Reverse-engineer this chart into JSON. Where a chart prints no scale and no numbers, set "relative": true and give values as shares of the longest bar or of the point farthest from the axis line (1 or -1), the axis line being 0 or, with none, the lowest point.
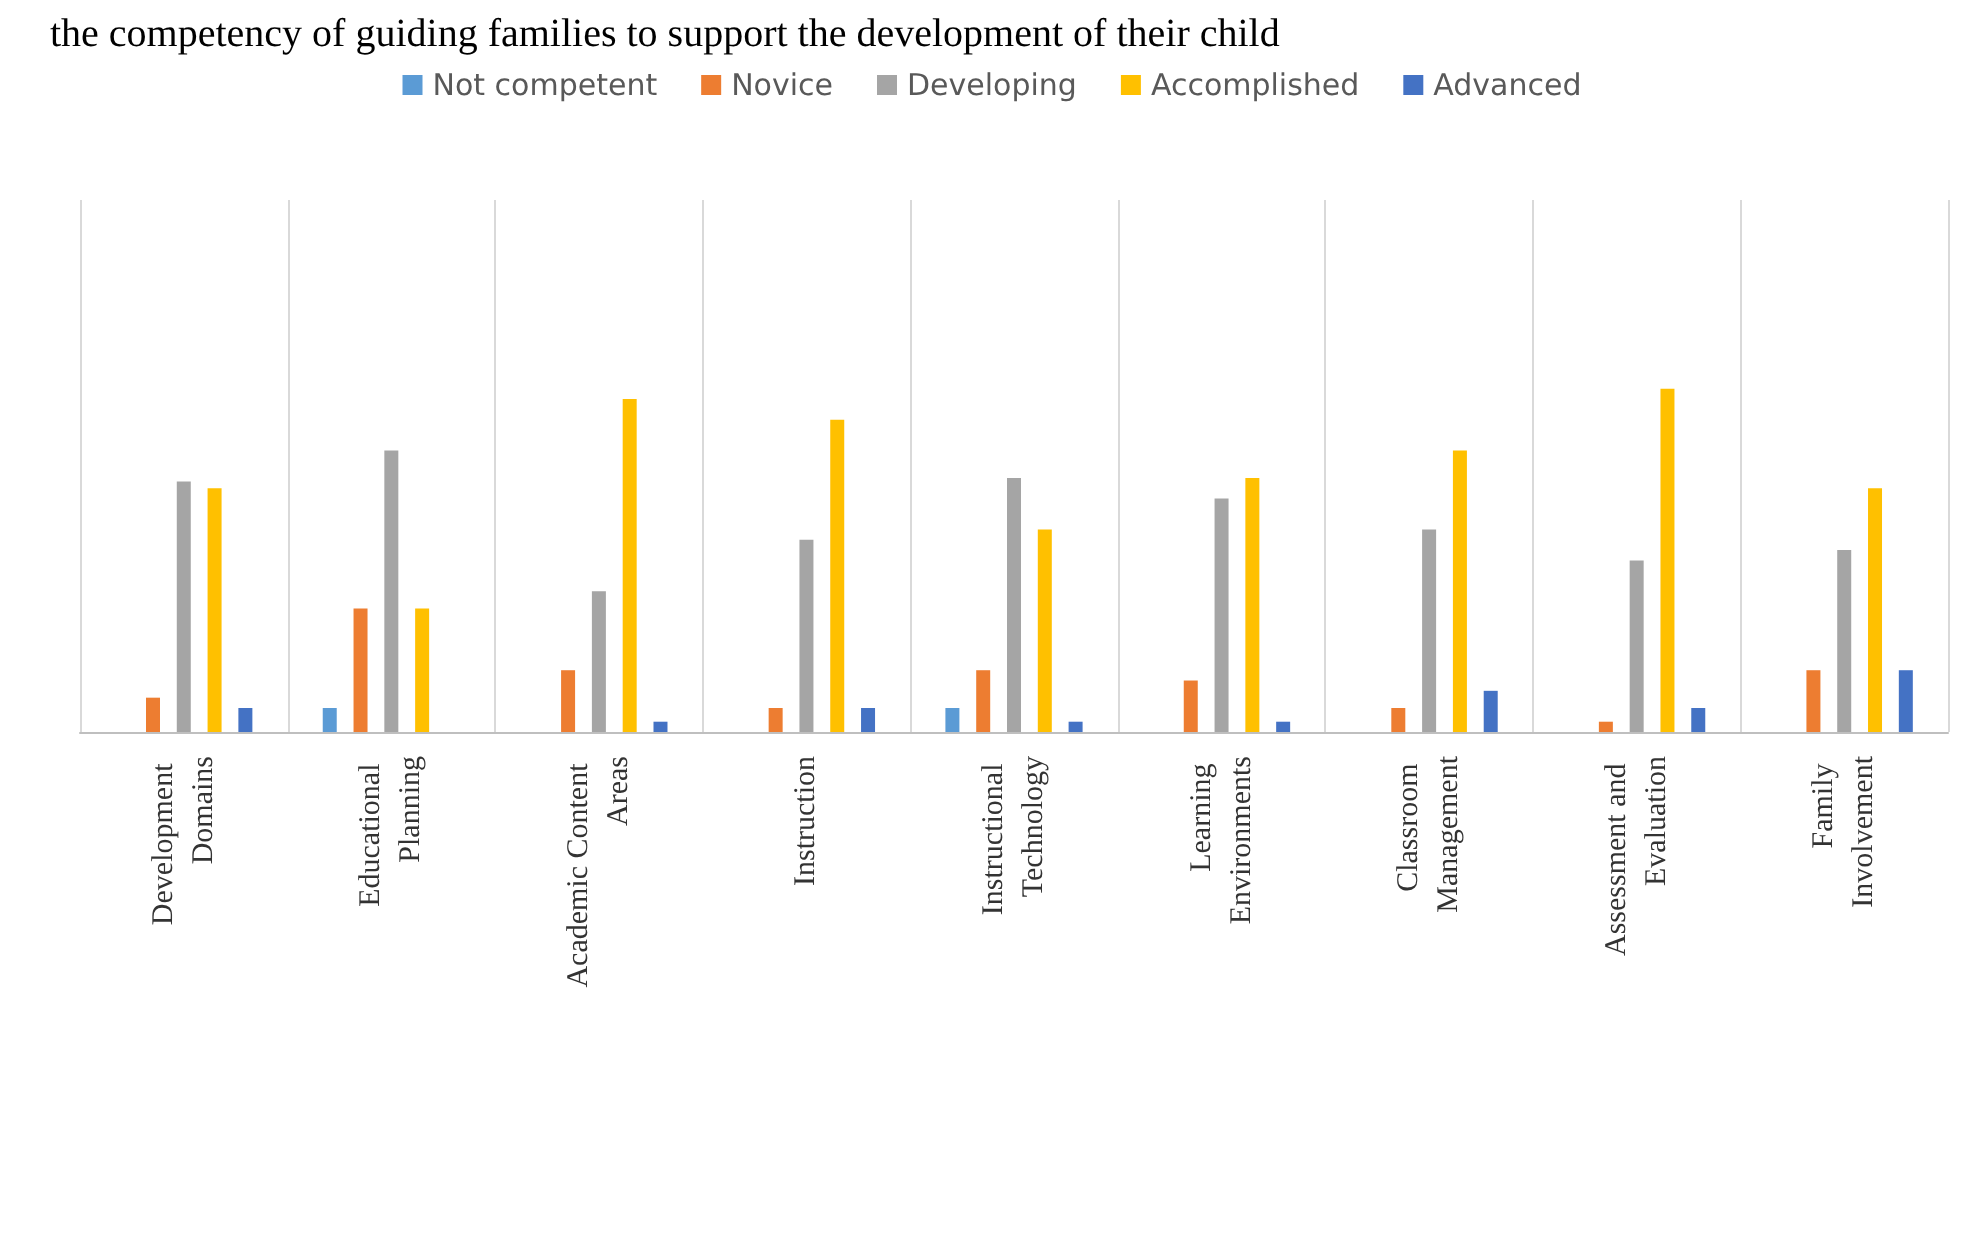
{
  "chart_data": {
    "type": "bar",
    "relative": true,
    "title": "the competency of guiding families to support the development of their child",
    "categories": [
      "Development Domains",
      "Educational Planning",
      "Academic Content Areas",
      "Instruction",
      "Instructional Technology",
      "Learning Environments",
      "Classroom Management",
      "Assessment and Evaluation",
      "Family Involvement"
    ],
    "series": [
      {
        "name": "Not competent",
        "color": "#5b9bd5",
        "values": [
          0,
          0.07,
          0,
          0,
          0.07,
          0,
          0,
          0,
          0
        ]
      },
      {
        "name": "Novice",
        "color": "#ed7d31",
        "values": [
          0.1,
          0.36,
          0.18,
          0.07,
          0.18,
          0.15,
          0.07,
          0.03,
          0.18
        ]
      },
      {
        "name": "Developing",
        "color": "#a5a5a5",
        "values": [
          0.73,
          0.82,
          0.41,
          0.56,
          0.74,
          0.68,
          0.59,
          0.5,
          0.53
        ]
      },
      {
        "name": "Accomplished",
        "color": "#ffc000",
        "values": [
          0.71,
          0.36,
          0.97,
          0.91,
          0.59,
          0.74,
          0.82,
          1,
          0.71
        ]
      },
      {
        "name": "Advanced",
        "color": "#4472c4",
        "values": [
          0.07,
          0,
          0.03,
          0.07,
          0.03,
          0.03,
          0.12,
          0.07,
          0.18
        ]
      }
    ],
    "grid": "x",
    "legend": "top"
  }
}
